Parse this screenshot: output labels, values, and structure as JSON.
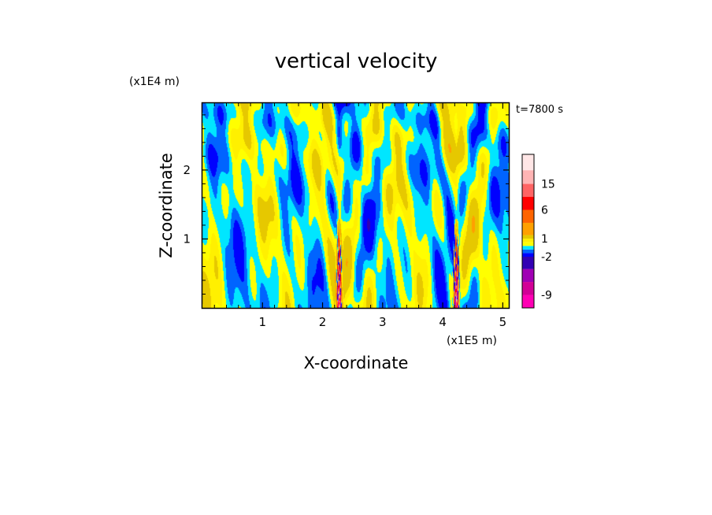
{
  "chart_data": {
    "type": "heatmap",
    "title": "vertical velocity",
    "xlabel": "X-coordinate",
    "ylabel": "Z-coordinate",
    "x_unit": "(x1E5 m)",
    "y_unit": "(x1E4 m)",
    "time_label": "t=7800 s",
    "xlim": [
      0,
      5.1
    ],
    "ylim": [
      0,
      2.97
    ],
    "x_ticks": [
      1,
      2,
      3,
      4,
      5
    ],
    "y_ticks": [
      1,
      2
    ],
    "colorbar": {
      "levels": [
        -12,
        -9,
        -6,
        -4,
        -2,
        -1,
        -0.5,
        0,
        0.5,
        1,
        2,
        4,
        6,
        10,
        15,
        20,
        25
      ],
      "colors": [
        "#ff00b4",
        "#d20096",
        "#a000b4",
        "#3200b4",
        "#0000ff",
        "#0064ff",
        "#00e6ff",
        "#ffff00",
        "#fff000",
        "#e6c800",
        "#ffa000",
        "#ff6400",
        "#ff0000",
        "#ff6464",
        "#ffb4b4",
        "#ffe6e6"
      ],
      "tick_labels": [
        "15",
        "6",
        "1",
        "-2",
        "-9"
      ],
      "tick_values": [
        15,
        6,
        1,
        -2,
        -9
      ]
    },
    "updraft_cores_x": [
      2.27,
      4.22
    ]
  }
}
